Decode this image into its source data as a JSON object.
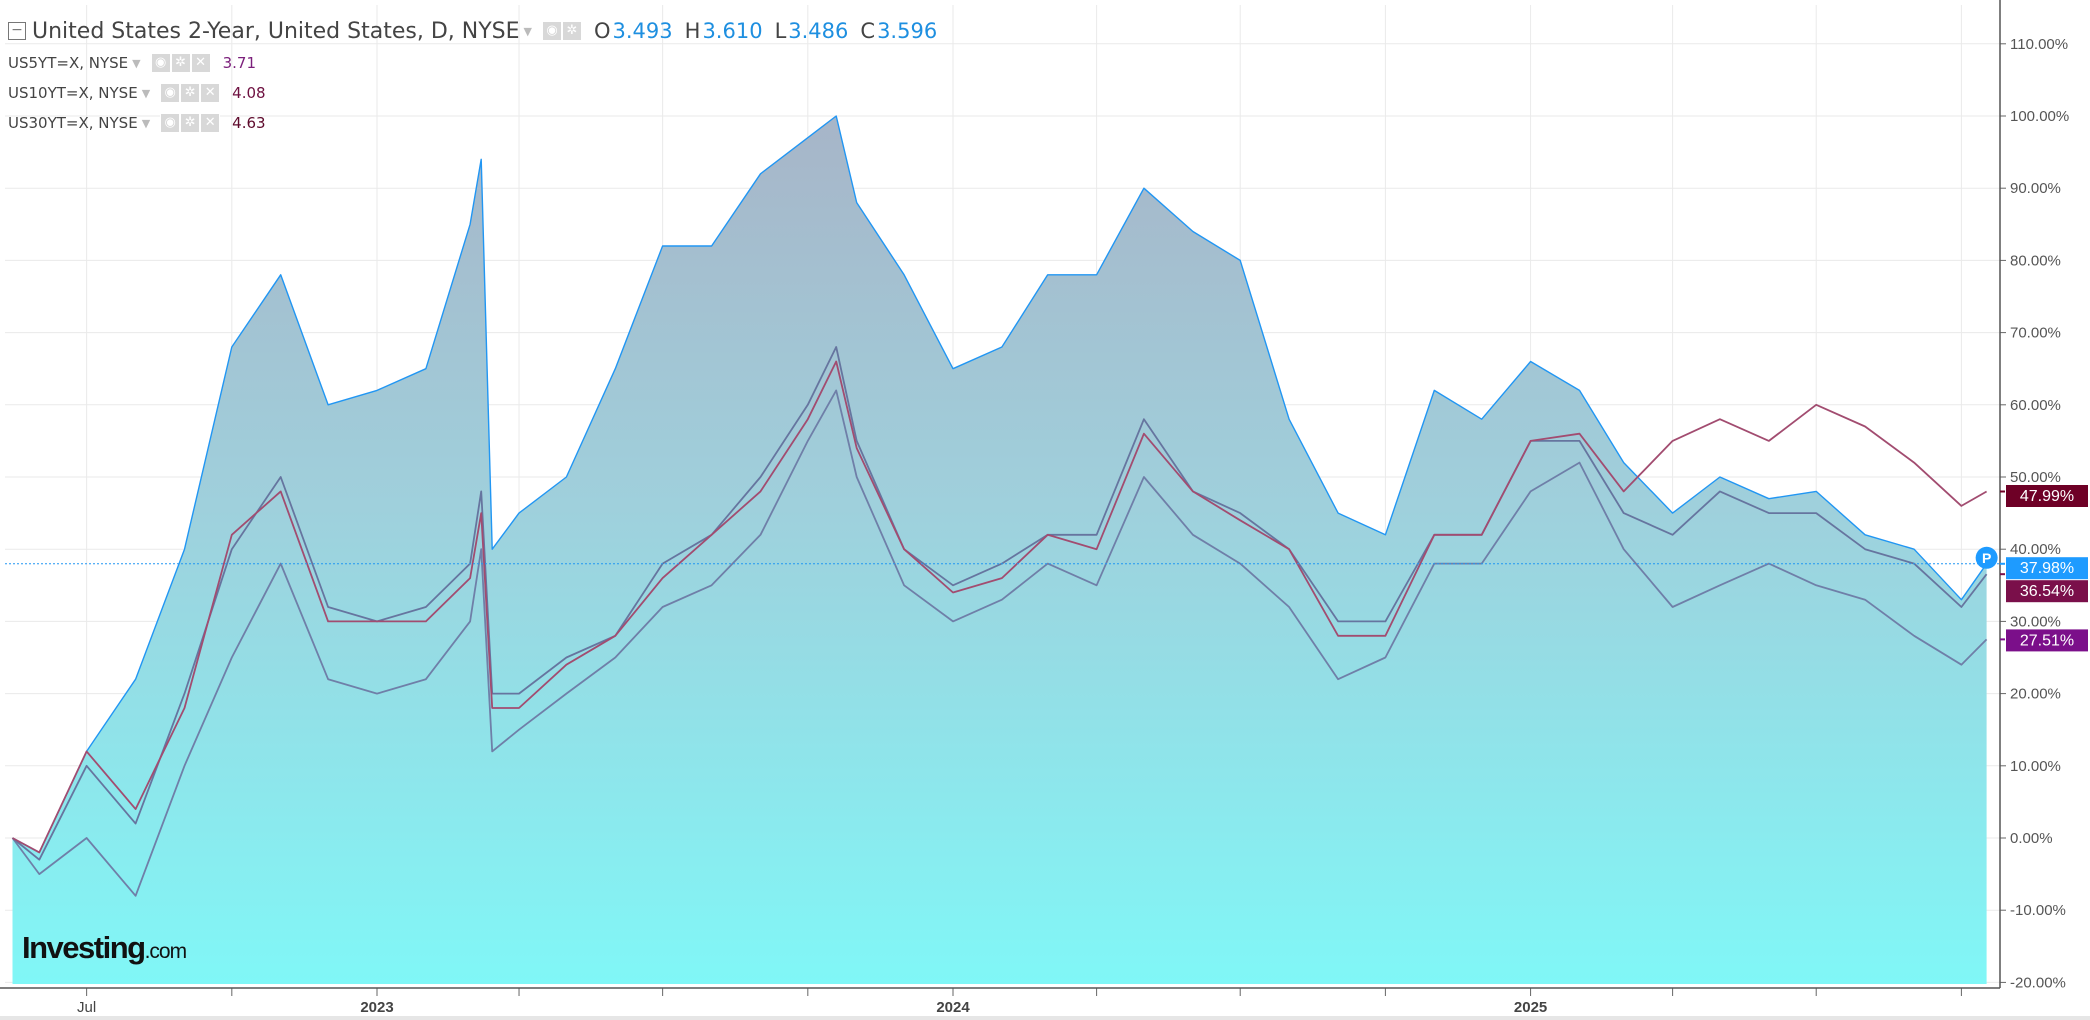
{
  "header": {
    "title": "United States 2-Year, United States, D, NYSE",
    "ohlc": {
      "o_label": "O",
      "o": "3.493",
      "h_label": "H",
      "h": "3.610",
      "l_label": "L",
      "l": "3.486",
      "c_label": "C",
      "c": "3.596"
    },
    "overlays": [
      {
        "label": "US5YT=X, NYSE",
        "value": "3.71",
        "color": "#7b1f7b"
      },
      {
        "label": "US10YT=X, NYSE",
        "value": "4.08",
        "color": "#6e1040"
      },
      {
        "label": "US30YT=X, NYSE",
        "value": "4.63",
        "color": "#5e0a2c"
      }
    ],
    "icons": [
      "collapse-icon",
      "caret-down-icon",
      "eye-icon",
      "gear-icon",
      "close-icon"
    ]
  },
  "logo": {
    "text": "Investing",
    "suffix": ".com"
  },
  "chart_data": {
    "type": "area",
    "xlabel": "",
    "ylabel": "",
    "ylim": [
      -20,
      110
    ],
    "yticks": [
      "110.00%",
      "100.00%",
      "90.00%",
      "80.00%",
      "70.00%",
      "60.00%",
      "50.00%",
      "40.00%",
      "30.00%",
      "20.00%",
      "10.00%",
      "0.00%",
      "-10.00%",
      "-20.00%"
    ],
    "xticks": [
      {
        "date": "2022-07-01",
        "label": "Jul"
      },
      {
        "date": "2023-01-01",
        "label": "2023"
      },
      {
        "date": "2024-01-01",
        "label": "2024"
      },
      {
        "date": "2025-01-01",
        "label": "2025"
      }
    ],
    "grid": true,
    "x": [
      "2022-05-15",
      "2022-06-01",
      "2022-07-01",
      "2022-08-01",
      "2022-09-01",
      "2022-10-01",
      "2022-11-01",
      "2022-12-01",
      "2023-01-01",
      "2023-02-01",
      "2023-03-01",
      "2023-03-08",
      "2023-03-15",
      "2023-04-01",
      "2023-05-01",
      "2023-06-01",
      "2023-07-01",
      "2023-08-01",
      "2023-09-01",
      "2023-10-01",
      "2023-10-19",
      "2023-11-01",
      "2023-12-01",
      "2024-01-01",
      "2024-02-01",
      "2024-03-01",
      "2024-04-01",
      "2024-05-01",
      "2024-06-01",
      "2024-07-01",
      "2024-08-01",
      "2024-09-01",
      "2024-10-01",
      "2024-11-01",
      "2024-12-01",
      "2025-01-01",
      "2025-02-01",
      "2025-03-01",
      "2025-04-01",
      "2025-05-01",
      "2025-06-01",
      "2025-07-01",
      "2025-08-01",
      "2025-09-01",
      "2025-10-01",
      "2025-10-17"
    ],
    "series": [
      {
        "name": "United States 2-Year",
        "style": "area",
        "color": "#2196f3",
        "last_label": "37.98%",
        "label_color": "#1e9bff",
        "values": [
          0,
          -2,
          12,
          22,
          40,
          68,
          78,
          60,
          62,
          65,
          85,
          94,
          40,
          45,
          50,
          65,
          82,
          82,
          92,
          97,
          100,
          88,
          78,
          65,
          68,
          78,
          78,
          90,
          84,
          80,
          58,
          45,
          42,
          62,
          58,
          66,
          62,
          52,
          45,
          50,
          47,
          48,
          42,
          40,
          33,
          37.98
        ]
      },
      {
        "name": "US5YT=X",
        "style": "line",
        "color": "#6f7fa8",
        "last_label": "27.51%",
        "label_color": "#7b0f8a",
        "values": [
          0,
          -5,
          0,
          -8,
          10,
          25,
          38,
          22,
          20,
          22,
          30,
          40,
          12,
          15,
          20,
          25,
          32,
          35,
          42,
          55,
          62,
          50,
          35,
          30,
          33,
          38,
          35,
          50,
          42,
          38,
          32,
          22,
          25,
          38,
          38,
          48,
          52,
          40,
          32,
          35,
          38,
          35,
          33,
          28,
          24,
          27.51
        ]
      },
      {
        "name": "US10YT=X",
        "style": "line",
        "color": "#66759f",
        "last_label": "36.54%",
        "label_color": "#7a0f4a",
        "values": [
          0,
          -3,
          10,
          2,
          20,
          40,
          50,
          32,
          30,
          32,
          38,
          48,
          20,
          20,
          25,
          28,
          38,
          42,
          50,
          60,
          68,
          55,
          40,
          35,
          38,
          42,
          42,
          58,
          48,
          45,
          40,
          30,
          30,
          42,
          42,
          55,
          55,
          45,
          42,
          48,
          45,
          45,
          40,
          38,
          32,
          36.54
        ]
      },
      {
        "name": "US30YT=X",
        "style": "line",
        "color": "#a24c70",
        "last_label": "47.99%",
        "label_color": "#6e0026",
        "values": [
          0,
          -2,
          12,
          4,
          18,
          42,
          48,
          30,
          30,
          30,
          36,
          45,
          18,
          18,
          24,
          28,
          36,
          42,
          48,
          58,
          66,
          54,
          40,
          34,
          36,
          42,
          40,
          56,
          48,
          44,
          40,
          28,
          28,
          42,
          42,
          55,
          56,
          48,
          55,
          58,
          55,
          60,
          57,
          52,
          46,
          47.99
        ]
      }
    ],
    "last_price_line": {
      "value": 37.98,
      "marker": "P"
    }
  }
}
